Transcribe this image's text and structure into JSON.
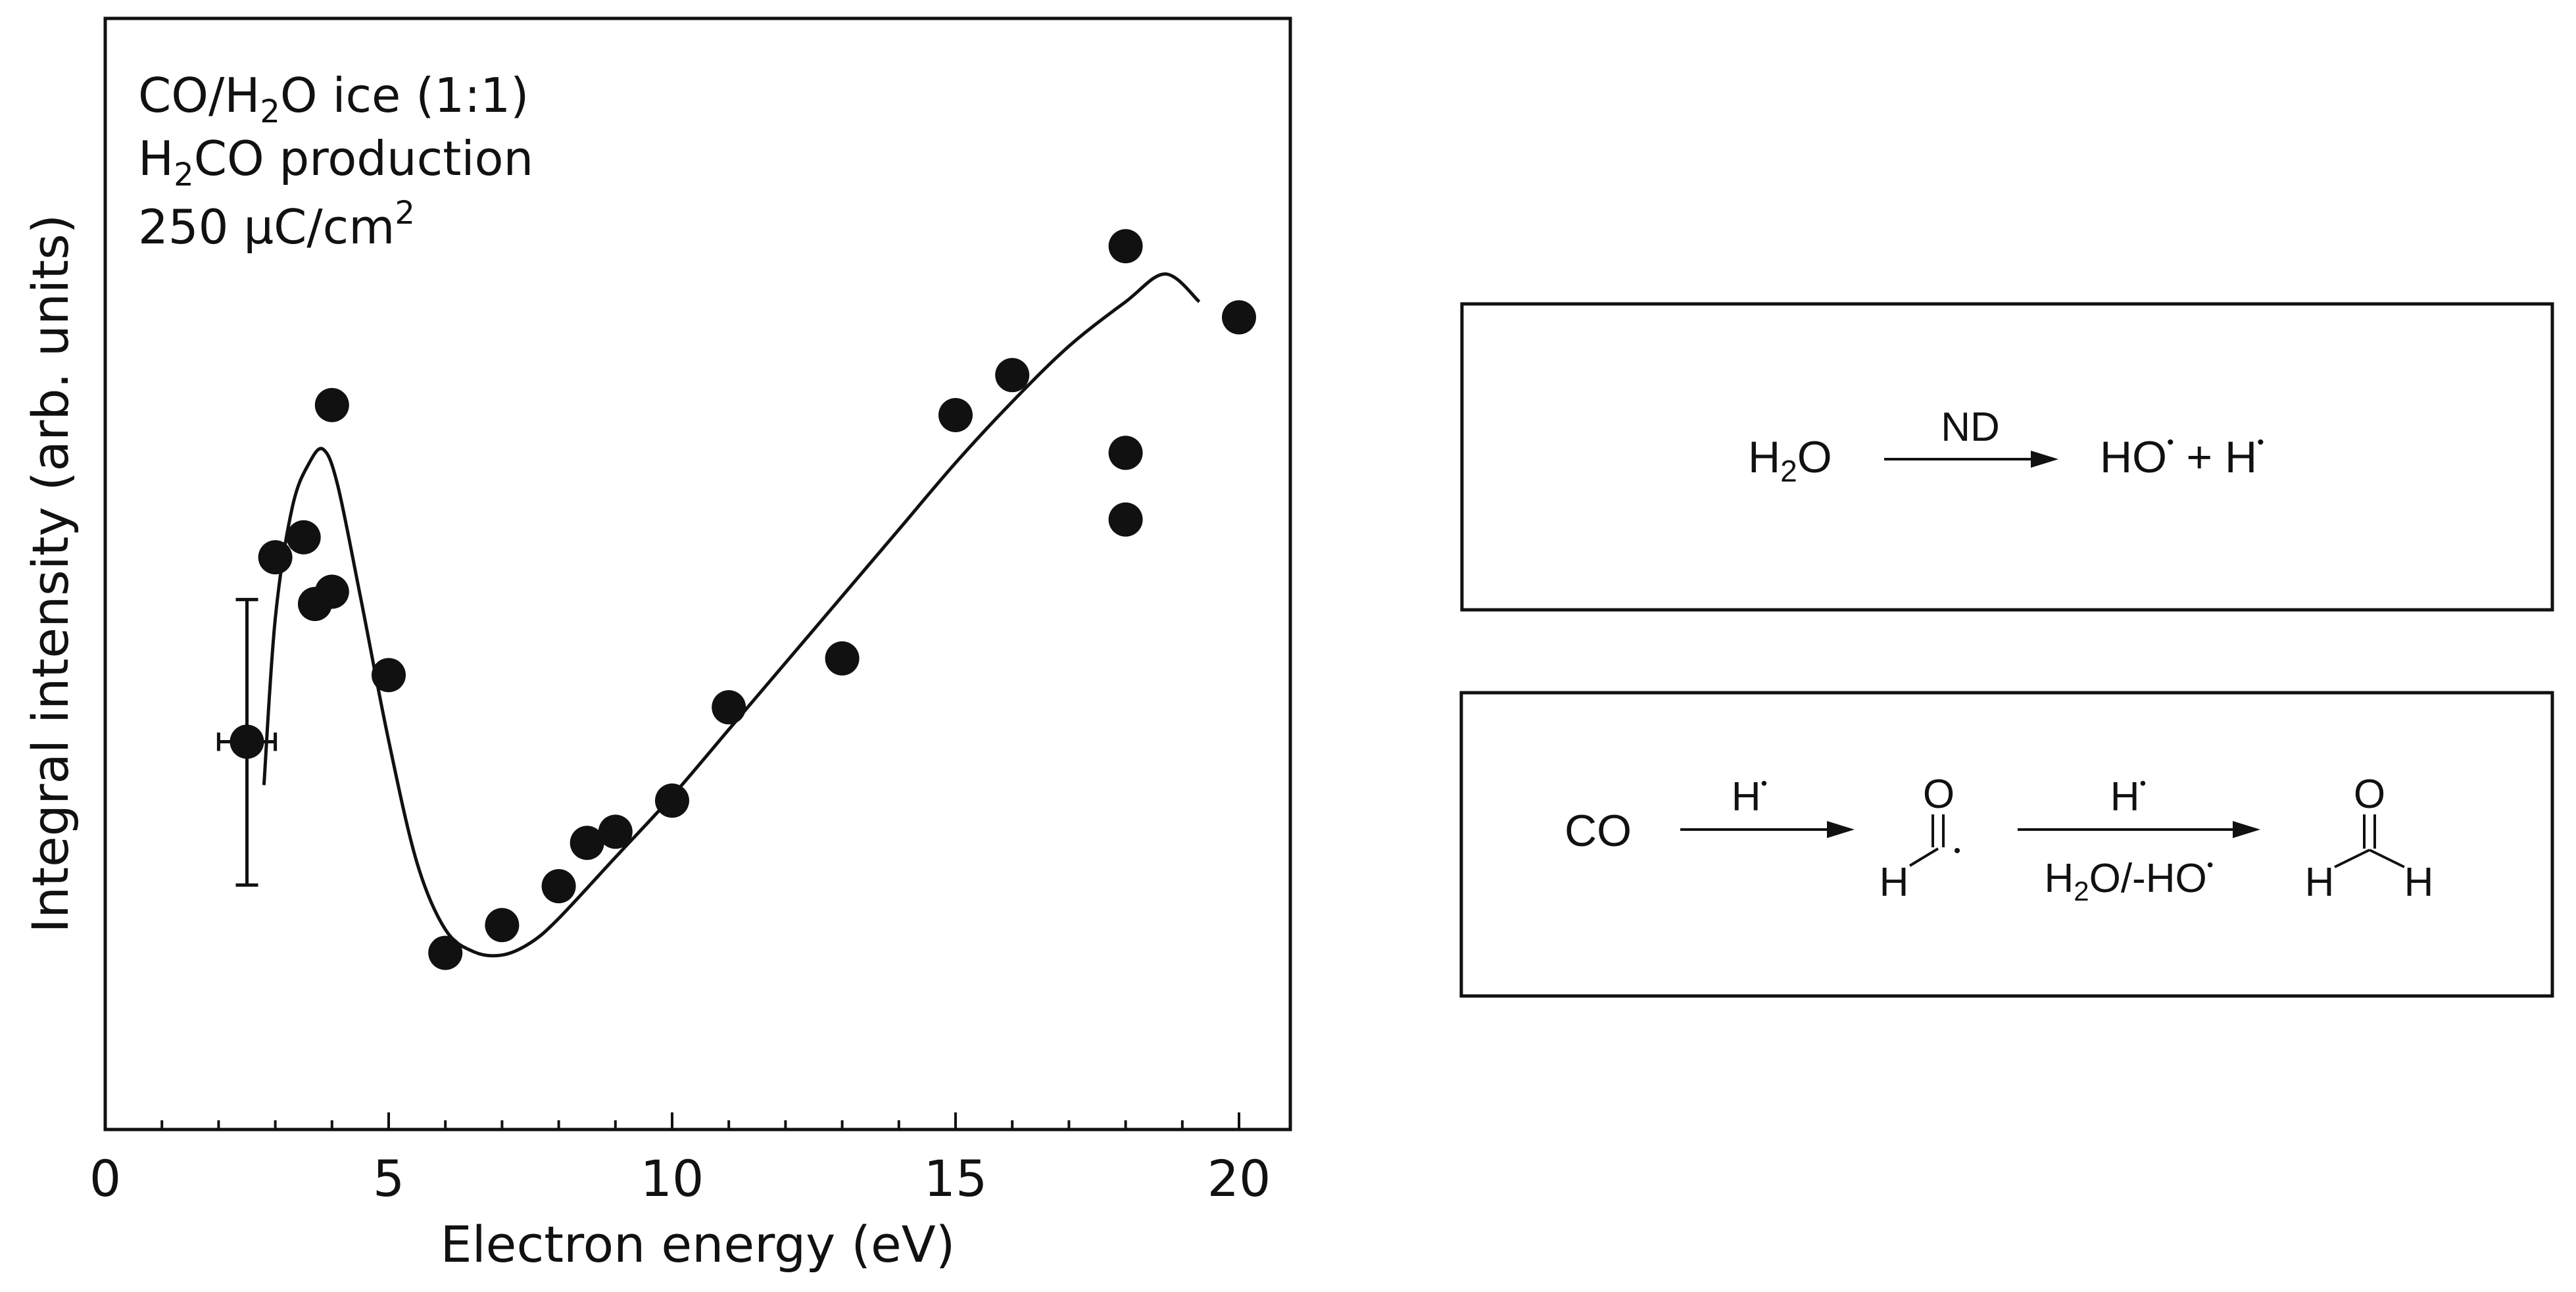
{
  "chart_data": {
    "type": "scatter",
    "xlabel": "Electron energy (eV)",
    "ylabel": "Integral intensity (arb. units)",
    "xlim": [
      0,
      21
    ],
    "ylim": [
      0,
      1
    ],
    "x_ticks": [
      0,
      5,
      10,
      15,
      20
    ],
    "x_tick_labels": [
      "0",
      "5",
      "10",
      "15",
      "20"
    ],
    "grid": false,
    "annotation": {
      "line1": {
        "a": "CO/H",
        "sub": "2",
        "b": "O ice (1:1)"
      },
      "line2": {
        "a": "H",
        "sub": "2",
        "b": "CO production"
      },
      "line3": {
        "a": "250 μC/cm",
        "sup": "2"
      }
    },
    "series": [
      {
        "type": "scatter",
        "points": [
          [
            2.5,
            0.349
          ],
          [
            3.0,
            0.515
          ],
          [
            3.5,
            0.533
          ],
          [
            3.7,
            0.473
          ],
          [
            4.0,
            0.484
          ],
          [
            4.0,
            0.652
          ],
          [
            5.0,
            0.409
          ],
          [
            6.0,
            0.159
          ],
          [
            7.0,
            0.184
          ],
          [
            8.0,
            0.219
          ],
          [
            8.5,
            0.258
          ],
          [
            9.0,
            0.268
          ],
          [
            10.0,
            0.296
          ],
          [
            11.0,
            0.38
          ],
          [
            13.0,
            0.424
          ],
          [
            15.0,
            0.643
          ],
          [
            16.0,
            0.679
          ],
          [
            18.0,
            0.609
          ],
          [
            18.0,
            0.549
          ],
          [
            18.0,
            0.795
          ],
          [
            20.0,
            0.731
          ]
        ],
        "error_bar": {
          "x": 2.5,
          "y": 0.349,
          "y_low": 0.22,
          "y_high": 0.477,
          "x_low": 2.0,
          "x_high": 3.0
        }
      },
      {
        "type": "line",
        "points": [
          [
            2.8,
            0.31
          ],
          [
            3.0,
            0.46
          ],
          [
            3.3,
            0.56
          ],
          [
            3.6,
            0.6
          ],
          [
            3.85,
            0.612
          ],
          [
            4.1,
            0.58
          ],
          [
            4.5,
            0.48
          ],
          [
            5.0,
            0.35
          ],
          [
            5.5,
            0.24
          ],
          [
            6.0,
            0.18
          ],
          [
            6.5,
            0.16
          ],
          [
            7.0,
            0.157
          ],
          [
            7.5,
            0.168
          ],
          [
            8.0,
            0.19
          ],
          [
            9.0,
            0.245
          ],
          [
            10.0,
            0.3
          ],
          [
            11.0,
            0.36
          ],
          [
            12.0,
            0.42
          ],
          [
            13.0,
            0.48
          ],
          [
            14.0,
            0.54
          ],
          [
            15.0,
            0.6
          ],
          [
            16.0,
            0.655
          ],
          [
            17.0,
            0.705
          ],
          [
            18.0,
            0.745
          ],
          [
            18.7,
            0.77
          ],
          [
            19.3,
            0.745
          ]
        ]
      }
    ]
  },
  "scheme": {
    "reaction1": {
      "reactant": {
        "a": "H",
        "sub": "2",
        "b": "O"
      },
      "over_arrow": "ND",
      "products": {
        "a": "HO",
        "dot1": "•",
        "plus": " + H",
        "dot2": "•"
      }
    },
    "reaction2": {
      "reactant": "CO",
      "arrow1_over": {
        "a": "H",
        "dot": "•"
      },
      "intermediate": {
        "o": "O",
        "h": "H",
        "dot": "•"
      },
      "arrow2_over": {
        "a": "H",
        "dot": "•"
      },
      "arrow2_under": {
        "a": "H",
        "sub": "2",
        "b": "O/-HO",
        "dot": "•"
      },
      "product": {
        "o": "O",
        "h1": "H",
        "h2": "H"
      }
    }
  }
}
